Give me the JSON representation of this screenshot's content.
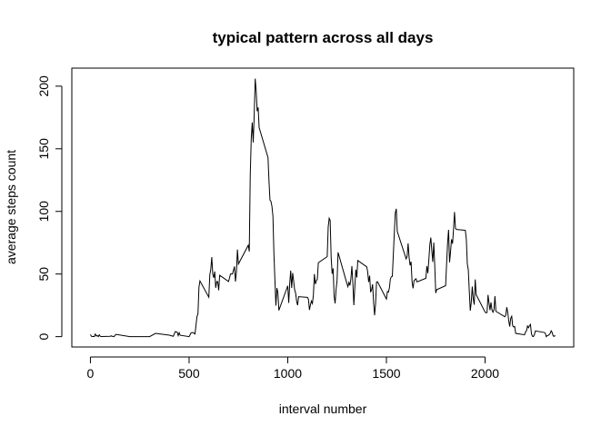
{
  "chart_data": {
    "type": "line",
    "title": "typical pattern across all days",
    "xlabel": "interval number",
    "ylabel": "average steps count",
    "color": "#000000",
    "xlim": [
      -94.2,
      2449.2
    ],
    "ylim": [
      -8.25,
      214.4
    ],
    "xticks": [
      0,
      500,
      1000,
      1500,
      2000
    ],
    "yticks": [
      0,
      50,
      100,
      150,
      200
    ],
    "x": [
      0,
      5,
      10,
      15,
      20,
      25,
      30,
      35,
      40,
      45,
      50,
      55,
      100,
      105,
      110,
      115,
      120,
      125,
      130,
      200,
      300,
      330,
      400,
      420,
      430,
      440,
      445,
      450,
      455,
      500,
      510,
      520,
      530,
      540,
      545,
      550,
      555,
      600,
      605,
      610,
      615,
      620,
      625,
      630,
      635,
      640,
      645,
      650,
      655,
      700,
      710,
      720,
      730,
      735,
      740,
      745,
      750,
      800,
      805,
      810,
      815,
      820,
      825,
      830,
      835,
      840,
      845,
      850,
      855,
      900,
      905,
      910,
      915,
      920,
      925,
      930,
      935,
      940,
      945,
      950,
      955,
      1000,
      1005,
      1010,
      1015,
      1020,
      1025,
      1030,
      1035,
      1040,
      1045,
      1050,
      1055,
      1100,
      1105,
      1110,
      1115,
      1120,
      1125,
      1130,
      1135,
      1140,
      1145,
      1150,
      1155,
      1200,
      1205,
      1210,
      1215,
      1220,
      1225,
      1230,
      1235,
      1240,
      1245,
      1250,
      1255,
      1300,
      1305,
      1310,
      1315,
      1320,
      1325,
      1330,
      1335,
      1340,
      1345,
      1350,
      1355,
      1400,
      1405,
      1410,
      1415,
      1420,
      1425,
      1430,
      1435,
      1440,
      1445,
      1450,
      1455,
      1500,
      1505,
      1510,
      1515,
      1520,
      1525,
      1530,
      1535,
      1540,
      1545,
      1550,
      1555,
      1600,
      1605,
      1610,
      1615,
      1620,
      1625,
      1630,
      1635,
      1640,
      1645,
      1650,
      1655,
      1700,
      1705,
      1710,
      1715,
      1720,
      1725,
      1730,
      1735,
      1740,
      1745,
      1750,
      1755,
      1800,
      1805,
      1810,
      1815,
      1820,
      1825,
      1830,
      1835,
      1840,
      1845,
      1850,
      1855,
      1900,
      1905,
      1910,
      1915,
      1920,
      1925,
      1930,
      1935,
      1940,
      1945,
      1950,
      1955,
      2000,
      2005,
      2010,
      2015,
      2020,
      2025,
      2030,
      2035,
      2040,
      2045,
      2050,
      2055,
      2100,
      2105,
      2110,
      2115,
      2120,
      2125,
      2130,
      2135,
      2140,
      2145,
      2150,
      2155,
      2200,
      2205,
      2210,
      2215,
      2220,
      2225,
      2230,
      2235,
      2240,
      2245,
      2250,
      2255,
      2300,
      2305,
      2310,
      2315,
      2320,
      2325,
      2330,
      2335,
      2340,
      2345,
      2350,
      2355
    ],
    "values": [
      1.7,
      0.3,
      0.1,
      0.2,
      0.1,
      2.1,
      0.5,
      0.9,
      0,
      1.5,
      0.3,
      0.1,
      0.3,
      0.7,
      0.2,
      0.3,
      0,
      1.1,
      1.8,
      0,
      0,
      2.6,
      1.2,
      0.3,
      4.1,
      3.5,
      0.8,
      3.1,
      1.1,
      0,
      3.0,
      3.3,
      2.1,
      16,
      18.3,
      39.5,
      44.5,
      31.5,
      49.3,
      53.8,
      63.5,
      50,
      47,
      52,
      39,
      44,
      44,
      37,
      49,
      44,
      50,
      50,
      56,
      44,
      52,
      69.5,
      58,
      73,
      68,
      129,
      158,
      171,
      155,
      177,
      206,
      196,
      180,
      183,
      167,
      143,
      124,
      109,
      108,
      104,
      96,
      66,
      45,
      24.8,
      38.8,
      35,
      21,
      40.6,
      26.9,
      42.4,
      52.7,
      38.9,
      50.8,
      44.3,
      37.4,
      34.7,
      28.3,
      25.1,
      31.9,
      31.4,
      29.7,
      21.3,
      25.5,
      28.4,
      26.5,
      33.4,
      50,
      42,
      44.6,
      46,
      59,
      63.9,
      87.6,
      94.5,
      92.8,
      63.4,
      50.2,
      54.5,
      32.4,
      26.5,
      37.7,
      45,
      67.3,
      42.3,
      39.9,
      43.3,
      40.9,
      46.2,
      56.4,
      42.8,
      25.1,
      39.9,
      53.5,
      47.3,
      60.8,
      55.8,
      51.9,
      43.6,
      48.7,
      35.5,
      37.5,
      41.8,
      27.5,
      17.1,
      26.1,
      43.6,
      43.8,
      30,
      36,
      35.5,
      38.8,
      46,
      47.8,
      48.1,
      65.3,
      82.9,
      98.7,
      102.1,
      84,
      62.1,
      64.1,
      74.5,
      63.2,
      56.9,
      59.8,
      43.9,
      38.6,
      44.7,
      45.5,
      46.2,
      43.7,
      46.6,
      56.3,
      50.7,
      61.2,
      73.4,
      79.1,
      68.9,
      59.7,
      75.1,
      56.5,
      34.8,
      37.5,
      40.7,
      58,
      74.7,
      85.3,
      59.3,
      67.8,
      77.7,
      74.2,
      85.3,
      99.5,
      86.6,
      85.6,
      84.9,
      77.8,
      58,
      53.4,
      36.3,
      20.7,
      27.4,
      40,
      30.2,
      25.5,
      45.7,
      33.5,
      19.6,
      19,
      19.3,
      33.3,
      26.8,
      21.2,
      27.3,
      21.3,
      19.5,
      21.3,
      32.3,
      20.2,
      15.9,
      17.2,
      23.5,
      19.2,
      12.5,
      8,
      14.7,
      16.3,
      8.7,
      7.8,
      8.1,
      2.6,
      1.5,
      3.7,
      4.8,
      8.5,
      7.1,
      8.7,
      9.8,
      2.2,
      0.3,
      0.1,
      1.6,
      4.6,
      3.3,
      2.8,
      0,
      0.8,
      1,
      1.6,
      2.6,
      4.7,
      3.3,
      0.6,
      0.2,
      1.1
    ]
  }
}
